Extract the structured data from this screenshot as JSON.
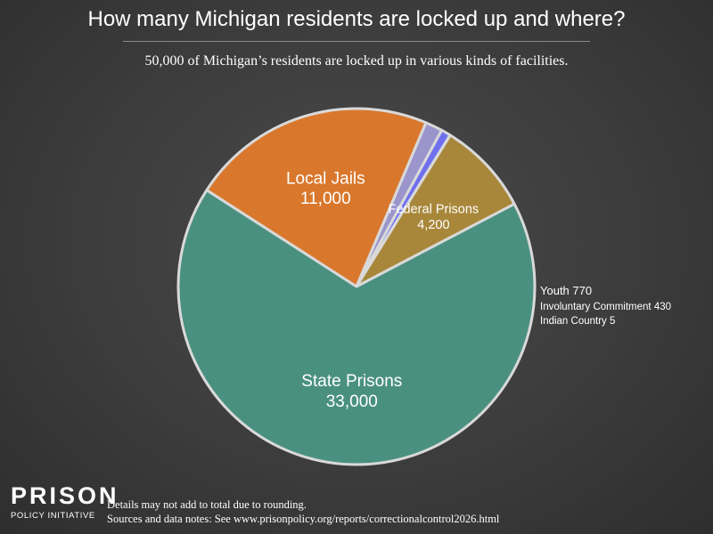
{
  "header": {
    "title": "How many Michigan residents are locked up and where?",
    "subtitle": "50,000 of Michigan’s residents are locked up in various kinds of facilities."
  },
  "chart_data": {
    "type": "pie",
    "title": "How many Michigan residents are locked up and where?",
    "subtitle": "50,000 of Michigan’s residents are locked up in various kinds of facilities.",
    "slices": [
      {
        "label": "Local Jails",
        "value_label": "11,000",
        "value": 11000,
        "color": "#d9782d",
        "label_style": "inside"
      },
      {
        "label": "Youth",
        "value_label": "770",
        "value": 770,
        "color": "#9b95cc",
        "label_style": "outside"
      },
      {
        "label": "Involuntary Commitment",
        "value_label": "430",
        "value": 430,
        "color": "#7070ee",
        "label_style": "outside"
      },
      {
        "label": "Indian Country",
        "value_label": "5",
        "value": 5,
        "color": "#3cb4c4",
        "label_style": "outside"
      },
      {
        "label": "Federal Prisons",
        "value_label": "4,200",
        "value": 4200,
        "color": "#a8873a",
        "label_style": "inside"
      },
      {
        "label": "State Prisons",
        "value_label": "33,000",
        "value": 33000,
        "color": "#4a9080",
        "label_style": "inside"
      }
    ],
    "slice_border_color": "#d9d9d9"
  },
  "footer": {
    "logo_line1": "PRISON",
    "logo_line2": "POLICY INITIATIVE",
    "note1": "Details may not add to total due to rounding.",
    "note2": "Sources and data notes: See www.prisonpolicy.org/reports/correctionalcontrol2026.html"
  }
}
